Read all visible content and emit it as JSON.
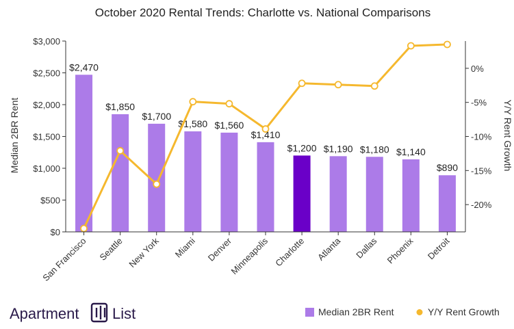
{
  "chart_data": {
    "type": "bar",
    "title": "October 2020 Rental Trends: Charlotte vs. National Comparisons",
    "categories": [
      "San Francisco",
      "Seattle",
      "New York",
      "Miami",
      "Denver",
      "Minneapolis",
      "Charlotte",
      "Atlanta",
      "Dallas",
      "Phoenix",
      "Detroit"
    ],
    "series": [
      {
        "name": "Median 2BR Rent",
        "type": "bar",
        "axis": "left",
        "values": [
          2470,
          1850,
          1700,
          1580,
          1560,
          1410,
          1200,
          1190,
          1180,
          1140,
          890
        ],
        "labels": [
          "$2,470",
          "$1,850",
          "$1,700",
          "$1,580",
          "$1,560",
          "$1,410",
          "$1,200",
          "$1,190",
          "$1,180",
          "$1,140",
          "$890"
        ],
        "color": "#ac7be8",
        "highlight_index": 6,
        "highlight_color": "#6a00c8"
      },
      {
        "name": "Y/Y Rent Growth",
        "type": "line",
        "axis": "right",
        "values": [
          -23.5,
          -12.1,
          -17.0,
          -4.9,
          -5.2,
          -8.9,
          -2.2,
          -2.4,
          -2.6,
          3.3,
          3.5
        ],
        "color": "#f5b82e"
      }
    ],
    "y_left": {
      "label": "Median 2BR Rent",
      "range": [
        0,
        3000
      ],
      "ticks": [
        0,
        500,
        1000,
        1500,
        2000,
        2500,
        3000
      ],
      "tick_labels": [
        "$0",
        "$500",
        "$1,000",
        "$1,500",
        "$2,000",
        "$2,500",
        "$3,000"
      ]
    },
    "y_right": {
      "label": "Y/Y Rent Growth",
      "range": [
        -24,
        4
      ],
      "ticks": [
        0,
        -5,
        -10,
        -15,
        -20
      ],
      "tick_labels": [
        "0%",
        "-5%",
        "-10%",
        "-15%",
        "-20%"
      ]
    },
    "grid": false,
    "legend": "bottom-right"
  },
  "brand": {
    "name_part1": "Apartment",
    "name_part2": "List"
  }
}
